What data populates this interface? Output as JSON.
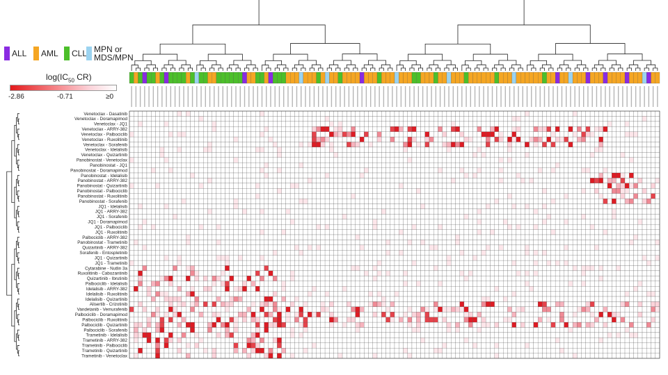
{
  "legend": {
    "items": [
      {
        "label": "ALL",
        "color": "#8a2be2"
      },
      {
        "label": "AML",
        "color": "#f5a623"
      },
      {
        "label": "CLL",
        "color": "#4cbf2a"
      },
      {
        "label": "MPN or\nMDS/MPN",
        "color": "#9bd3f0"
      }
    ]
  },
  "color_scale": {
    "title": "log(IC",
    "subscript": "50",
    "title_end": " CR)",
    "min_label": "-2.86",
    "mid_label": "-0.71",
    "max_label": "≥0",
    "colors": [
      "#e31a1c",
      "#fbd3da",
      "#ffffff"
    ]
  },
  "chart_data": {
    "type": "heatmap",
    "title": "",
    "row_labels": [
      "Venetoclax - Dasatinib",
      "Venetoclax - Doramapimod",
      "Venetoclax - JQ1",
      "Venetoclax - ARRY-382",
      "Venetoclax - Palbociclib",
      "Venetoclax - Ruxolitinib",
      "Venetoclax - Sorafenib",
      "Venetoclax - Idelalisib",
      "Venetoclax - Quizartinib",
      "Panobinostat - Venetoclax",
      "Panobinostat - JQ1",
      "Panobinostat - Doramapimod",
      "Panobinostat - Idelalisib",
      "Panobinostat - ARRY-382",
      "Panobinostat - Quizartinib",
      "Panobinostat - Palbociclib",
      "Panobinostat - Ruxolitinib",
      "Panobinostat - Sorafenib",
      "JQ1 - Idelalisib",
      "JQ1 - ARRY-382",
      "JQ1 - Sorafenib",
      "JQ1 - Doramapimod",
      "JQ1 - Palbociclib",
      "JQ1 - Ruxolitinib",
      "Palbociclib - ARRY-382",
      "Panobinostat - Trametinib",
      "Quizartinib - ARRY-382",
      "Sorafenib - Entospletinib",
      "JQ1 - Quizartinib",
      "JQ1 - Trametinib",
      "Cytarabine - Nutlin 3a",
      "Ruxolitinib - Cabozantinib",
      "Quizartinib - Ibrutinib",
      "Palbociclib - Idelalisib",
      "Idelalisib - ARRY-382",
      "Idelalisib - Ruxolitinib",
      "Idelalisib - Quizartinib",
      "Alisertib - Crizotinib",
      "Vandetanib - Vemurafenib",
      "Palbociclib - Doramapimod",
      "Palbociclib - Ruxolitinib",
      "Palbociclib - Quizartinib",
      "Palbociclib - Sorafenib",
      "Trametinib - Idelalisib",
      "Trametinib - ARRY-382",
      "Trametinib - Palbociclib",
      "Trametinib - Quizartinib",
      "Trametinib - Venetoclax"
    ],
    "column_count": 122,
    "column_groups": [
      "CLL",
      "AML",
      "CLL",
      "ALL",
      "CLL",
      "CLL",
      "AML",
      "CLL",
      "ALL",
      "CLL",
      "CLL",
      "CLL",
      "CLL",
      "AML",
      "CLL",
      "MPN",
      "CLL",
      "CLL",
      "AML",
      "AML",
      "CLL",
      "CLL",
      "CLL",
      "CLL",
      "CLL",
      "CLL",
      "ALL",
      "AML",
      "AML",
      "CLL",
      "CLL",
      "AML",
      "ALL",
      "CLL",
      "CLL",
      "CLL",
      "AML",
      "AML",
      "AML",
      "MPN",
      "AML",
      "AML",
      "AML",
      "CLL",
      "AML",
      "MPN",
      "AML",
      "AML",
      "CLL",
      "AML",
      "AML",
      "AML",
      "AML",
      "ALL",
      "AML",
      "AML",
      "AML",
      "CLL",
      "AML",
      "AML",
      "AML",
      "MPN",
      "AML",
      "AML",
      "AML",
      "CLL",
      "CLL",
      "AML",
      "AML",
      "AML",
      "CLL",
      "AML",
      "AML",
      "MPN",
      "AML",
      "AML",
      "AML",
      "CLL",
      "AML",
      "AML",
      "AML",
      "AML",
      "AML",
      "AML",
      "CLL",
      "AML",
      "AML",
      "AML",
      "MPN",
      "AML",
      "AML",
      "AML",
      "AML",
      "AML",
      "AML",
      "CLL",
      "AML",
      "AML",
      "ALL",
      "AML",
      "AML",
      "MPN",
      "AML",
      "AML",
      "AML",
      "ALL",
      "AML",
      "AML",
      "AML",
      "ALL",
      "AML",
      "AML",
      "AML",
      "AML",
      "ALL",
      "AML",
      "AML",
      "AML",
      "MPN",
      "ALL",
      "AML",
      "AML"
    ],
    "value_range": [
      -2.86,
      0
    ],
    "grid": true,
    "legend_position": "top-left"
  }
}
